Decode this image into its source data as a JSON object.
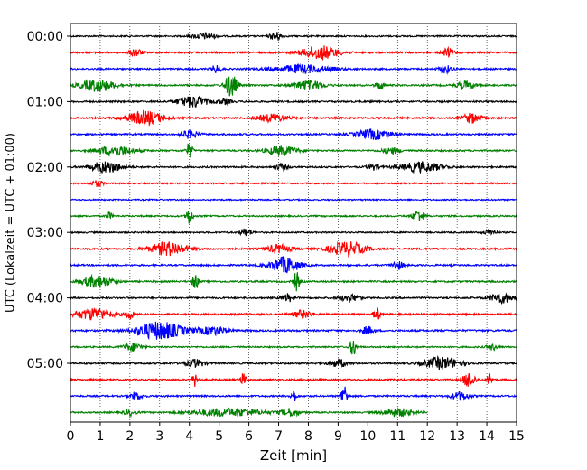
{
  "chart_data": {
    "type": "line",
    "title": "",
    "xlabel": "Zeit  [min]",
    "ylabel": "UTC (Lokalzeit = UTC + 01:00)",
    "xlim": [
      0,
      15
    ],
    "x_ticks": [
      0,
      1,
      2,
      3,
      4,
      5,
      6,
      7,
      8,
      9,
      10,
      11,
      12,
      13,
      14,
      15
    ],
    "x_tick_labels": [
      "0",
      "1",
      "2",
      "3",
      "4",
      "5",
      "6",
      "7",
      "8",
      "9",
      "10",
      "11",
      "12",
      "13",
      "14",
      "15"
    ],
    "y_tick_labels": [
      {
        "label": "00:00",
        "row": 0
      },
      {
        "label": "01:00",
        "row": 4
      },
      {
        "label": "02:00",
        "row": 8
      },
      {
        "label": "03:00",
        "row": 12
      },
      {
        "label": "04:00",
        "row": 16
      },
      {
        "label": "05:00",
        "row": 20
      }
    ],
    "vertical_grid": "dotted",
    "trace_colors": [
      "#000000",
      "#ff0000",
      "#0000ff",
      "#008000"
    ],
    "row_minutes": 15,
    "traces": [
      {
        "start": "00:00",
        "end_min": 15,
        "color": "#000000",
        "noise": 0.9,
        "events": [
          [
            4.5,
            0.4,
            1.5
          ],
          [
            6.9,
            0.2,
            2.0
          ]
        ]
      },
      {
        "start": "00:15",
        "end_min": 15,
        "color": "#ff0000",
        "noise": 1.0,
        "events": [
          [
            2.2,
            0.2,
            2.0
          ],
          [
            8.4,
            0.6,
            3.5
          ],
          [
            12.7,
            0.2,
            2.0
          ]
        ]
      },
      {
        "start": "00:30",
        "end_min": 15,
        "color": "#0000ff",
        "noise": 1.0,
        "events": [
          [
            4.9,
            0.15,
            2.0
          ],
          [
            7.8,
            1.0,
            2.0
          ],
          [
            12.6,
            0.2,
            2.0
          ]
        ]
      },
      {
        "start": "00:45",
        "end_min": 15,
        "color": "#008000",
        "noise": 1.0,
        "events": [
          [
            0.9,
            0.6,
            3.0
          ],
          [
            5.4,
            0.2,
            6.0
          ],
          [
            8.0,
            0.5,
            2.5
          ],
          [
            10.4,
            0.15,
            2.0
          ],
          [
            13.3,
            0.3,
            2.0
          ]
        ]
      },
      {
        "start": "01:00",
        "end_min": 15,
        "color": "#000000",
        "noise": 1.0,
        "events": [
          [
            4.1,
            0.5,
            3.0
          ],
          [
            5.2,
            0.2,
            1.5
          ]
        ]
      },
      {
        "start": "01:15",
        "end_min": 15,
        "color": "#ff0000",
        "noise": 1.0,
        "events": [
          [
            2.5,
            0.6,
            3.5
          ],
          [
            6.8,
            0.5,
            2.0
          ],
          [
            13.5,
            0.3,
            2.5
          ]
        ]
      },
      {
        "start": "01:30",
        "end_min": 15,
        "color": "#0000ff",
        "noise": 1.0,
        "events": [
          [
            4.0,
            0.3,
            2.0
          ],
          [
            10.2,
            0.6,
            2.5
          ]
        ]
      },
      {
        "start": "01:45",
        "end_min": 15,
        "color": "#008000",
        "noise": 1.0,
        "events": [
          [
            1.5,
            0.6,
            2.5
          ],
          [
            4.0,
            0.1,
            4.0
          ],
          [
            7.1,
            0.5,
            2.5
          ],
          [
            10.8,
            0.3,
            1.5
          ]
        ]
      },
      {
        "start": "02:00",
        "end_min": 15,
        "color": "#000000",
        "noise": 1.0,
        "events": [
          [
            1.2,
            0.5,
            3.0
          ],
          [
            7.1,
            0.2,
            1.5
          ],
          [
            10.2,
            0.2,
            1.5
          ],
          [
            11.8,
            0.7,
            2.5
          ]
        ]
      },
      {
        "start": "02:15",
        "end_min": 15,
        "color": "#ff0000",
        "noise": 0.8,
        "events": [
          [
            0.9,
            0.2,
            1.5
          ]
        ]
      },
      {
        "start": "02:30",
        "end_min": 15,
        "color": "#0000ff",
        "noise": 0.8,
        "events": []
      },
      {
        "start": "02:45",
        "end_min": 15,
        "color": "#008000",
        "noise": 0.9,
        "events": [
          [
            1.3,
            0.1,
            2.0
          ],
          [
            4.0,
            0.1,
            4.5
          ],
          [
            11.7,
            0.2,
            3.0
          ]
        ]
      },
      {
        "start": "03:00",
        "end_min": 15,
        "color": "#000000",
        "noise": 0.9,
        "events": [
          [
            5.9,
            0.2,
            2.0
          ],
          [
            14.1,
            0.2,
            1.5
          ]
        ]
      },
      {
        "start": "03:15",
        "end_min": 15,
        "color": "#ff0000",
        "noise": 1.0,
        "events": [
          [
            3.3,
            0.6,
            3.5
          ],
          [
            7.0,
            0.4,
            2.0
          ],
          [
            9.3,
            0.6,
            3.5
          ]
        ]
      },
      {
        "start": "03:30",
        "end_min": 15,
        "color": "#0000ff",
        "noise": 1.0,
        "events": [
          [
            7.2,
            0.5,
            4.0
          ],
          [
            11.0,
            0.2,
            2.0
          ]
        ]
      },
      {
        "start": "03:45",
        "end_min": 15,
        "color": "#008000",
        "noise": 1.0,
        "events": [
          [
            0.9,
            0.5,
            3.0
          ],
          [
            4.2,
            0.1,
            4.0
          ],
          [
            7.6,
            0.1,
            5.0
          ]
        ]
      },
      {
        "start": "04:00",
        "end_min": 15,
        "color": "#000000",
        "noise": 1.0,
        "events": [
          [
            7.3,
            0.2,
            2.0
          ],
          [
            9.4,
            0.3,
            2.0
          ],
          [
            14.5,
            0.4,
            2.5
          ]
        ]
      },
      {
        "start": "04:15",
        "end_min": 15,
        "color": "#ff0000",
        "noise": 1.1,
        "events": [
          [
            0.8,
            0.6,
            3.0
          ],
          [
            2.0,
            0.1,
            3.0
          ],
          [
            7.8,
            0.3,
            2.0
          ],
          [
            10.3,
            0.1,
            3.5
          ]
        ]
      },
      {
        "start": "04:30",
        "end_min": 15,
        "color": "#0000ff",
        "noise": 1.1,
        "events": [
          [
            3.0,
            0.8,
            4.5
          ],
          [
            4.8,
            0.5,
            2.0
          ],
          [
            10.0,
            0.2,
            2.0
          ]
        ]
      },
      {
        "start": "04:45",
        "end_min": 15,
        "color": "#008000",
        "noise": 0.9,
        "events": [
          [
            2.1,
            0.3,
            2.0
          ],
          [
            9.5,
            0.1,
            5.0
          ],
          [
            14.2,
            0.2,
            1.5
          ]
        ]
      },
      {
        "start": "05:00",
        "end_min": 15,
        "color": "#000000",
        "noise": 1.0,
        "events": [
          [
            4.2,
            0.3,
            2.0
          ],
          [
            9.0,
            0.3,
            2.0
          ],
          [
            12.5,
            0.6,
            3.0
          ]
        ]
      },
      {
        "start": "05:15",
        "end_min": 15,
        "color": "#ff0000",
        "noise": 1.0,
        "events": [
          [
            4.2,
            0.1,
            3.5
          ],
          [
            5.8,
            0.1,
            3.0
          ],
          [
            13.4,
            0.2,
            4.0
          ],
          [
            14.1,
            0.1,
            3.0
          ]
        ]
      },
      {
        "start": "05:30",
        "end_min": 15,
        "color": "#0000ff",
        "noise": 1.0,
        "events": [
          [
            2.2,
            0.2,
            2.0
          ],
          [
            7.5,
            0.1,
            3.0
          ],
          [
            9.2,
            0.1,
            6.0
          ],
          [
            13.1,
            0.3,
            2.0
          ]
        ]
      },
      {
        "start": "05:45",
        "end_min": 12,
        "color": "#008000",
        "noise": 0.9,
        "events": [
          [
            2.0,
            0.2,
            1.5
          ],
          [
            5.3,
            1.2,
            2.0
          ],
          [
            7.4,
            0.3,
            2.0
          ],
          [
            11.0,
            0.5,
            2.0
          ]
        ]
      }
    ]
  }
}
